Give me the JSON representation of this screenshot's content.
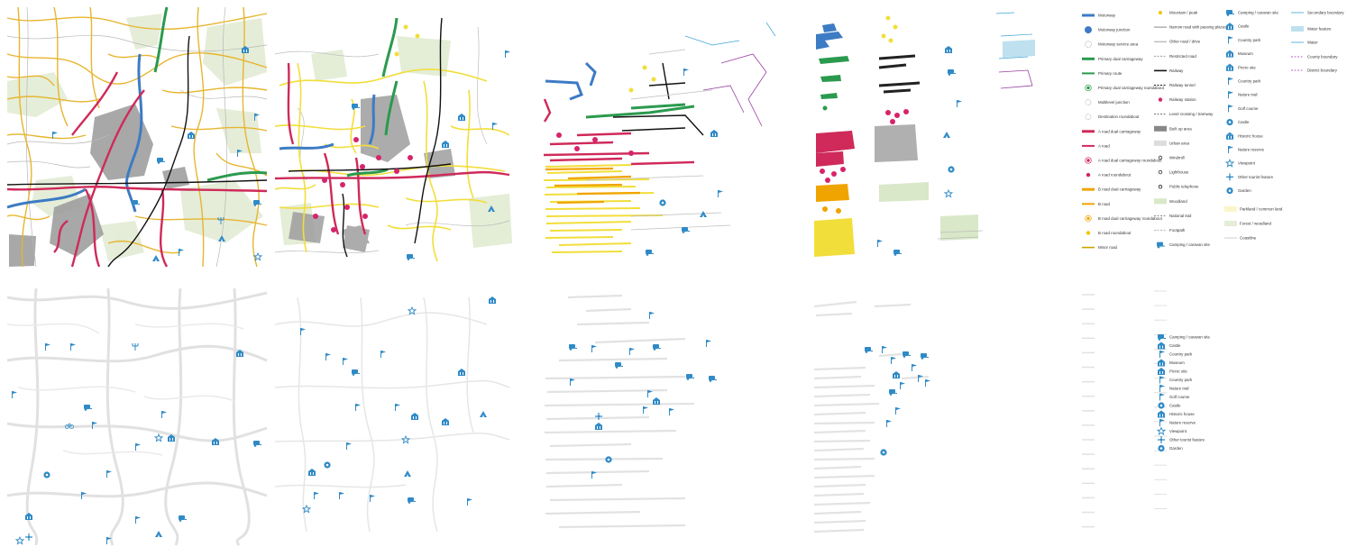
{
  "legend": {
    "col1": [
      "Motorway",
      "Motorway junction",
      "Motorway service area",
      "Primary dual carriageway",
      "Primary route",
      "Primary dual carriageway roundabout",
      "Multilevel junction",
      "Destination roundabout",
      "A road dual carriageway",
      "A road",
      "A road dual carriageway roundabout",
      "A road roundabout",
      "B road dual carriageway",
      "B road",
      "B road dual carriageway roundabout",
      "B road roundabout",
      "Minor road"
    ],
    "col2": [
      "Mountain / peak",
      "Narrow road with passing places",
      "Other road / drive",
      "Restricted road",
      "Railway",
      "Railway tunnel",
      "Railway station",
      "Level crossing / tramway",
      "Built up area",
      "Urban area",
      "Windmill",
      "Lighthouse",
      "Public telephone",
      "Woodland",
      "National trail",
      "Footpath",
      "Camping / caravan site"
    ],
    "col3": [
      "Camping / caravan site",
      "Castle",
      "Country park",
      "Museum",
      "Picnic site",
      "Country park",
      "Nature trail",
      "Golf course",
      "Castle",
      "Historic house",
      "Nature reserve",
      "Viewpoint",
      "Other tourist feature",
      "Garden"
    ],
    "col4": [
      "Secondary boundary",
      "Water feature",
      "Water",
      "County boundary",
      "District boundary"
    ],
    "fills": [
      "Parkland / common land",
      "Forest / woodland",
      "Coastline"
    ]
  }
}
